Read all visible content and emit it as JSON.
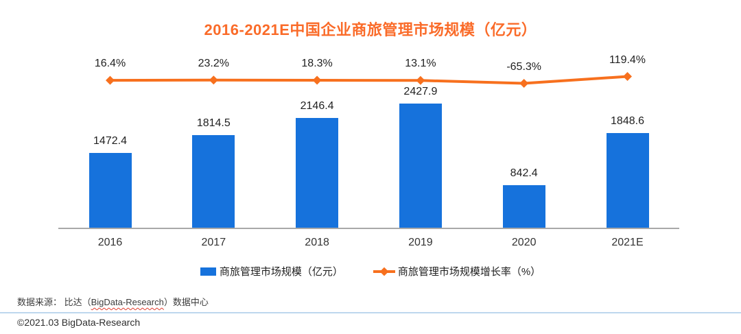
{
  "title": {
    "text": "2016-2021E中国企业商旅管理市场规模（亿元）",
    "color": "#FA6B29"
  },
  "chart_data": {
    "type": "bar",
    "subtype": "bar-line-combo",
    "title": "2016-2021E中国企业商旅管理市场规模（亿元）",
    "categories": [
      "2016",
      "2017",
      "2018",
      "2019",
      "2020",
      "2021E"
    ],
    "series": [
      {
        "name": "商旅管理市场规模（亿元）",
        "type": "bar",
        "color": "#1672DC",
        "values": [
          1472.4,
          1814.5,
          2146.4,
          2427.9,
          842.4,
          1848.6
        ],
        "labels": [
          "1472.4",
          "1814.5",
          "2146.4",
          "2427.9",
          "842.4",
          "1848.6"
        ]
      },
      {
        "name": "商旅管理市场规模增长率（%）",
        "type": "line",
        "marker": "diamond",
        "color": "#F7701E",
        "values": [
          16.4,
          23.2,
          18.3,
          13.1,
          -65.3,
          119.4
        ],
        "labels": [
          "16.4%",
          "23.2%",
          "18.3%",
          "13.1%",
          "-65.3%",
          "119.4%"
        ]
      }
    ],
    "xlabel": "",
    "ylabel": "",
    "y_axis_visible": false,
    "gridlines": false,
    "legend_position": "bottom",
    "axis_color": "#A8A8A8"
  },
  "footer": {
    "source_prefix": "数据来源： 比达（",
    "source_brand": "BigData-Research",
    "source_suffix": "）数据中心",
    "copyright": "©2021.03 BigData-Research",
    "divider_color": "#BDD7EE",
    "spellcheck_color": "#E03C2E"
  }
}
